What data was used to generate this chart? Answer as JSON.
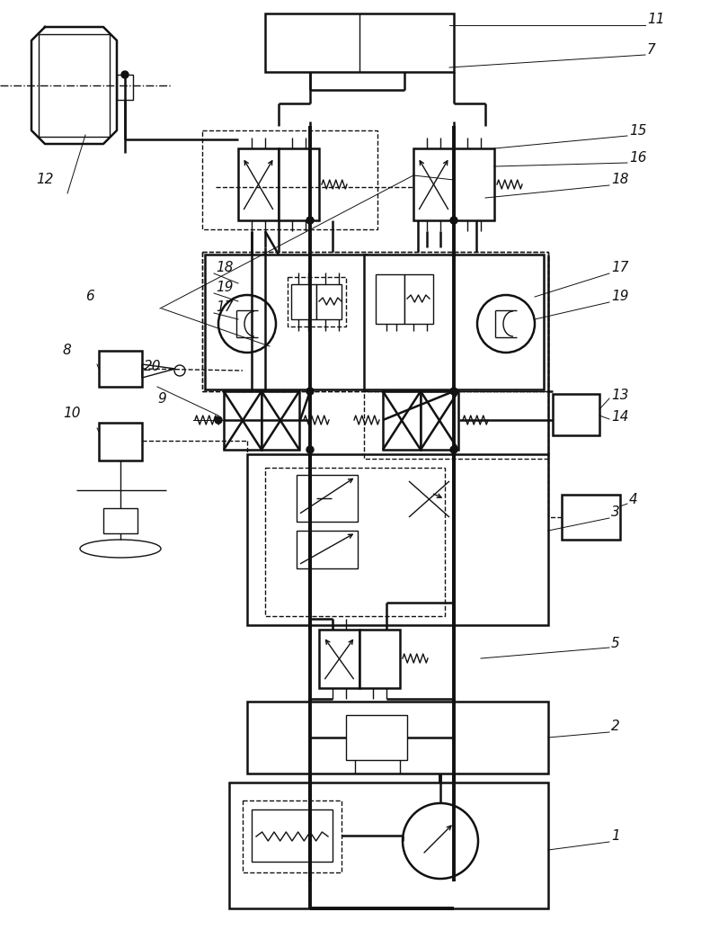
{
  "bg": "#ffffff",
  "lc": "#111111",
  "lw": 1.8,
  "lw_thick": 2.8,
  "lw_thin": 1.0,
  "lw_label": 0.7
}
